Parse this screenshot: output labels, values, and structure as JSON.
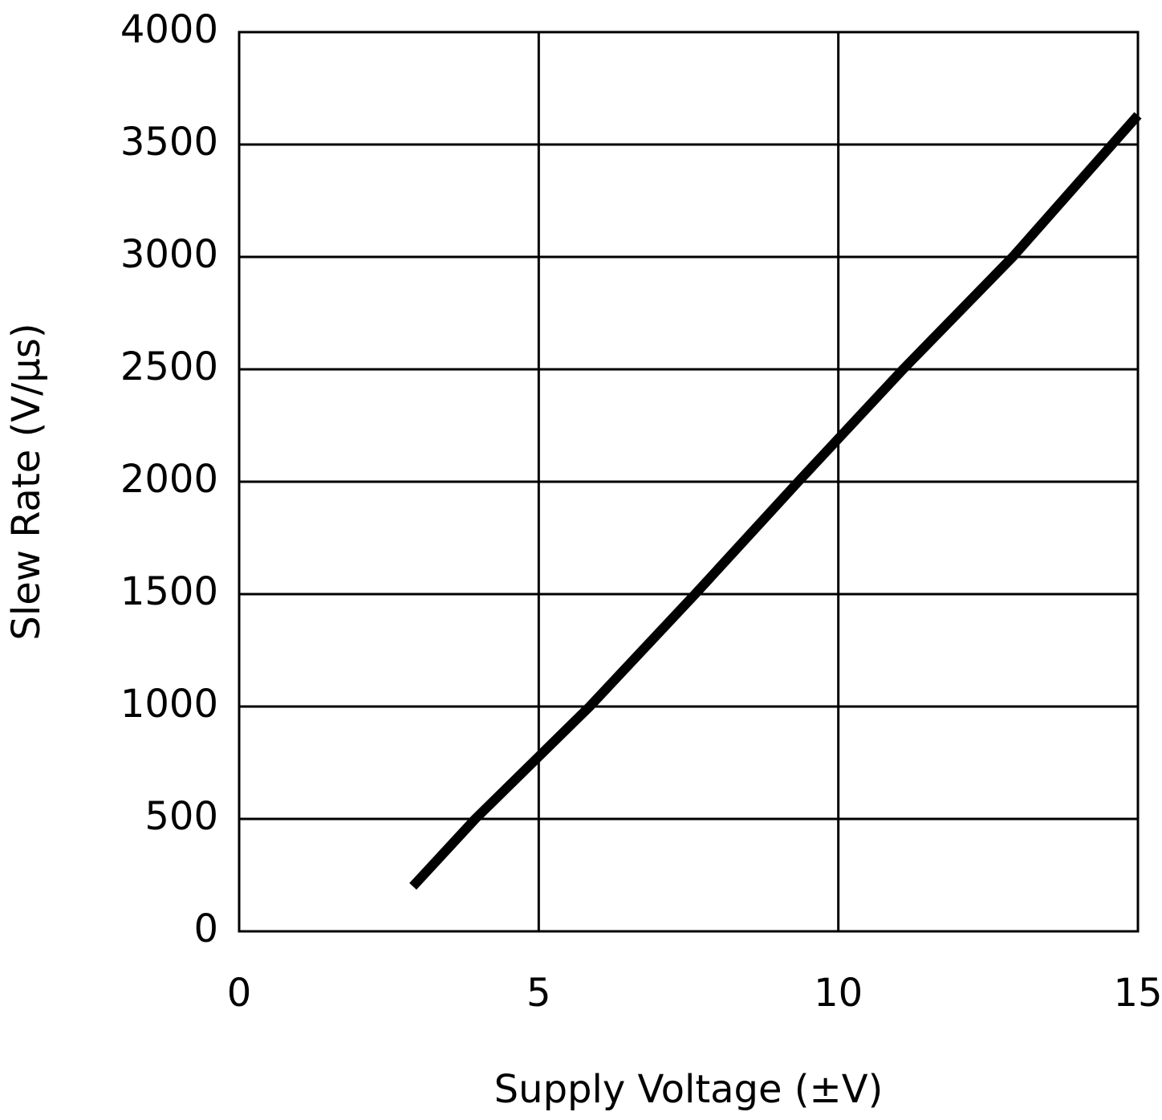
{
  "chart_data": {
    "type": "line",
    "x_label": "Supply Voltage (±V)",
    "y_label": "Slew Rate (V/μs)",
    "series": [
      {
        "name": "Slew Rate",
        "color": "#000000",
        "x": [
          2.9,
          3.94,
          5.85,
          7.61,
          9.33,
          11.08,
          12.91,
          15
        ],
        "values": [
          200,
          500,
          1000,
          1500,
          2000,
          2500,
          3000,
          3630
        ]
      }
    ],
    "xlim": [
      0,
      15
    ],
    "xticks": [
      0,
      5,
      10,
      15
    ],
    "ylim": [
      0,
      4000
    ],
    "yticks": [
      0,
      500,
      1000,
      1500,
      2000,
      2500,
      3000,
      3500,
      4000
    ],
    "grid": true
  }
}
